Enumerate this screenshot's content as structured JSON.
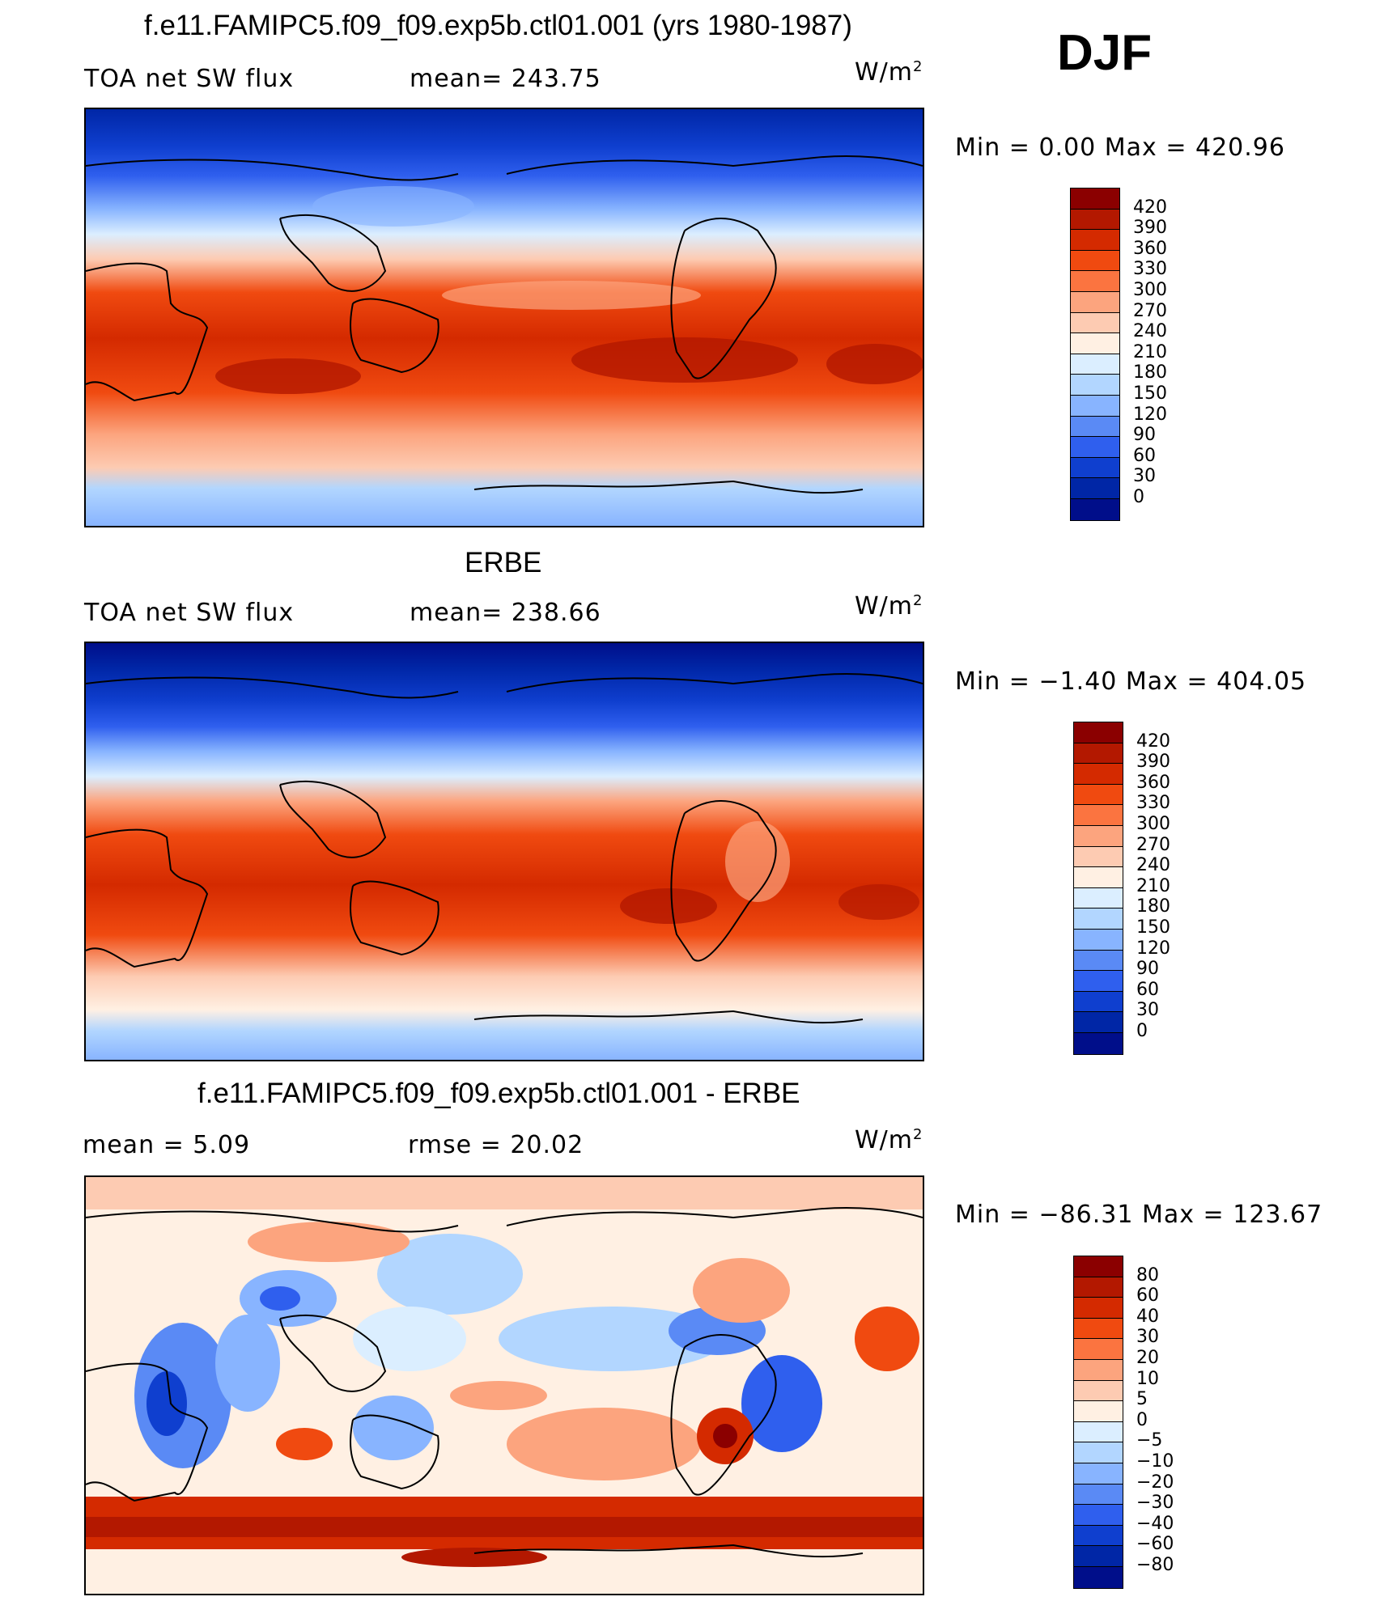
{
  "season": "DJF",
  "units_base": "W/m",
  "units_exp": "2",
  "panels": [
    {
      "title": "f.e11.FAMIPC5.f09_f09.exp5b.ctl01.001 (yrs 1980-1987)",
      "left_label": "TOA net SW flux",
      "mid_label": "mean=  243.75",
      "minmax": "Min  =    0.00  Max  =  420.96"
    },
    {
      "title": "ERBE",
      "left_label": "TOA net SW flux",
      "mid_label": "mean=  238.66",
      "minmax": "Min  =   −1.40  Max  =  404.05"
    },
    {
      "title": "f.e11.FAMIPC5.f09_f09.exp5b.ctl01.001 - ERBE",
      "left_label": "mean  =     5.09",
      "mid_label": "rmse  =    20.02",
      "minmax": "Min  = −86.31  Max  =  123.67"
    }
  ],
  "abs_legend": {
    "labels": [
      "420",
      "390",
      "360",
      "330",
      "300",
      "270",
      "240",
      "210",
      "180",
      "150",
      "120",
      "90",
      "60",
      "30",
      "0"
    ],
    "colors": [
      "#8b0000",
      "#b31800",
      "#d42a00",
      "#f04a10",
      "#fb7440",
      "#fca47e",
      "#fdcbb2",
      "#fff0e3",
      "#dbeeff",
      "#b2d6ff",
      "#88b4ff",
      "#5a8af5",
      "#2f5fee",
      "#0f3fcf",
      "#0026a6",
      "#000e8a"
    ]
  },
  "diff_legend": {
    "labels": [
      "80",
      "60",
      "40",
      "30",
      "20",
      "10",
      "5",
      "0",
      "−5",
      "−10",
      "−20",
      "−30",
      "−40",
      "−60",
      "−80"
    ],
    "colors": [
      "#8b0000",
      "#b31800",
      "#d42a00",
      "#f04a10",
      "#fb7440",
      "#fca47e",
      "#fdcbb2",
      "#fff0e3",
      "#dbeeff",
      "#b2d6ff",
      "#88b4ff",
      "#5a8af5",
      "#2f5fee",
      "#0f3fcf",
      "#0026a6",
      "#000e8a"
    ]
  }
}
